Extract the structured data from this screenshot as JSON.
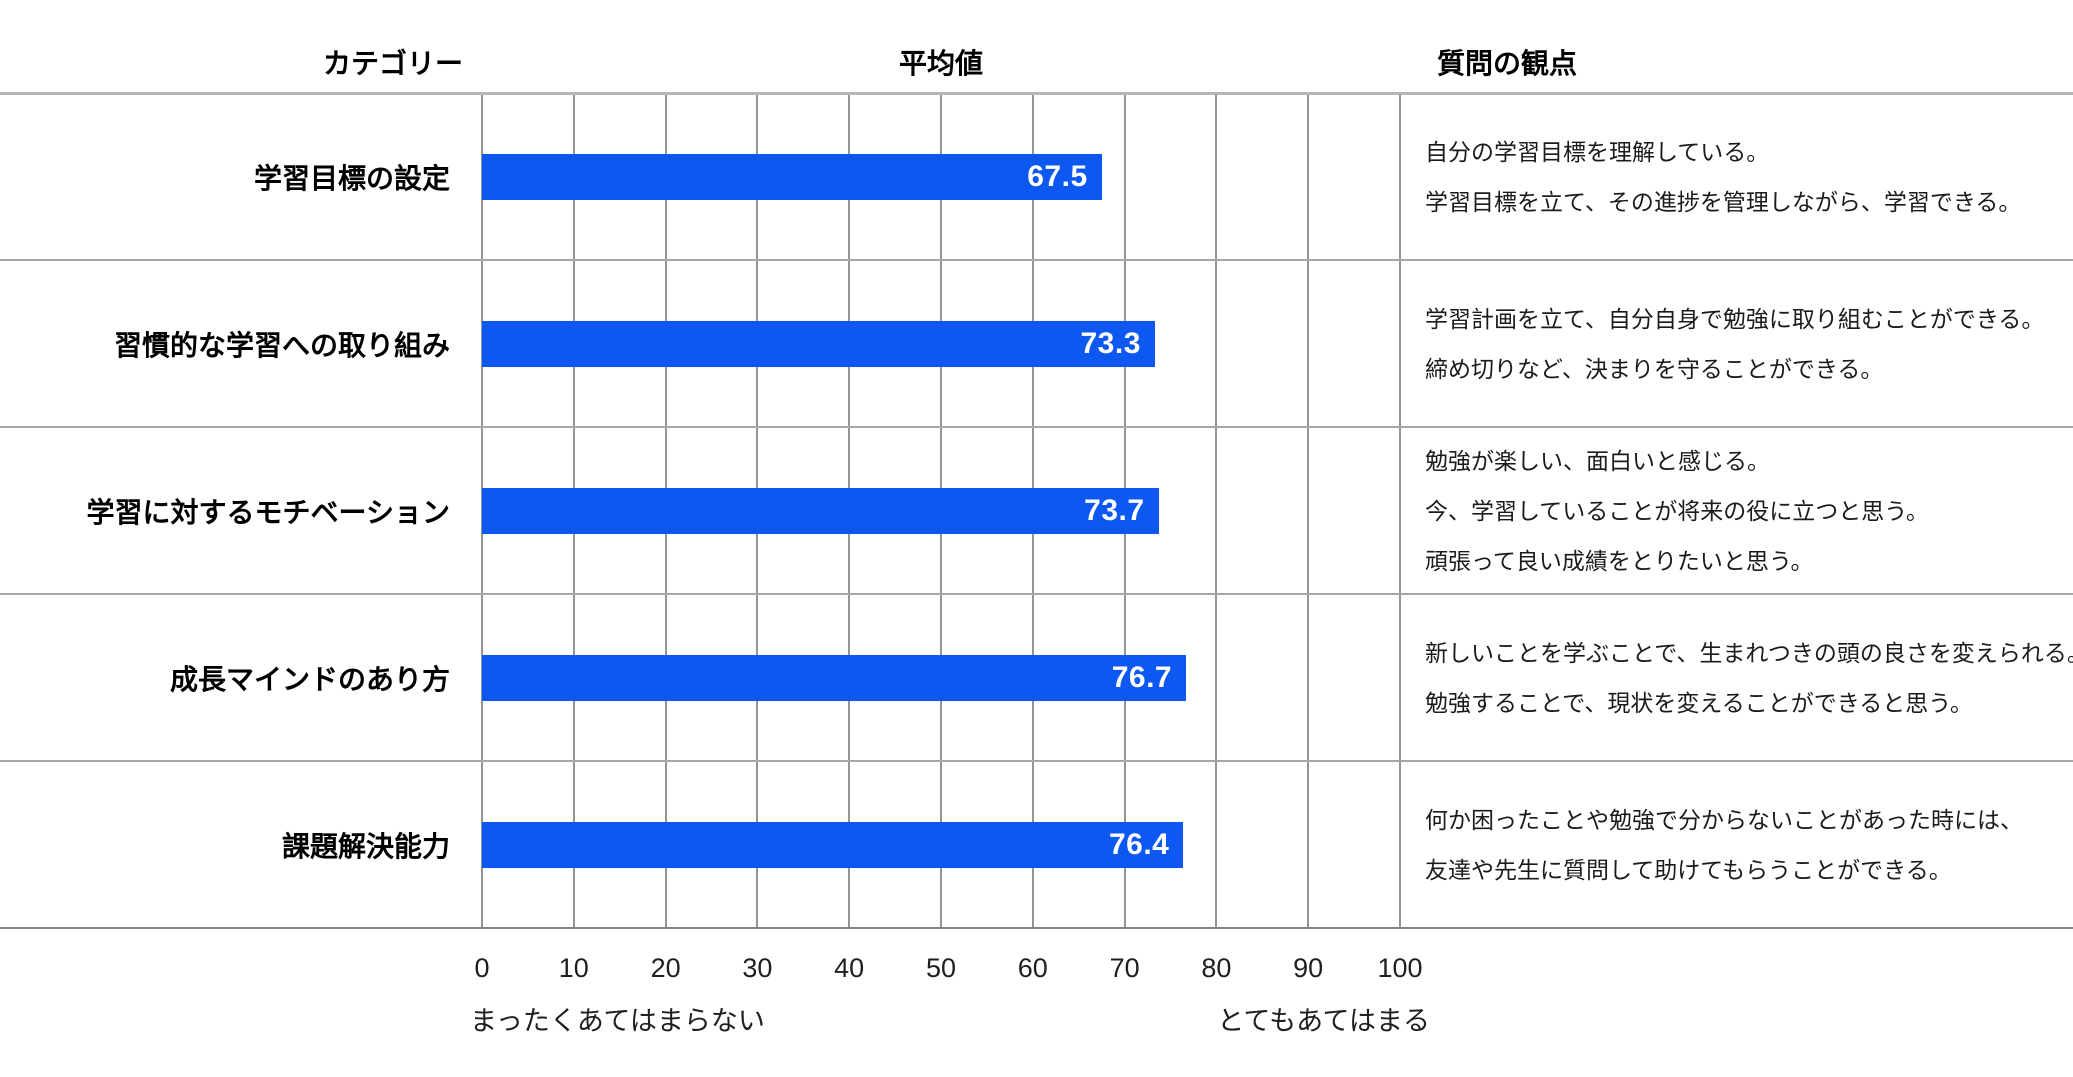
{
  "header": {
    "category": "カテゴリー",
    "average": "平均値",
    "question": "質問の観点"
  },
  "axis": {
    "min_caption": "まったくあてはまらない",
    "max_caption": "とてもあてはまる"
  },
  "colors": {
    "bar": "#0E58F2",
    "value_text": "#ffffff",
    "grid_vertical": "#949494",
    "row_line": "#a6a6a6",
    "header_line": "#b5b5b5",
    "bottom_line": "#838383"
  },
  "chart_data": {
    "type": "bar",
    "orientation": "horizontal",
    "xlim": [
      0,
      100
    ],
    "x_ticks": [
      0,
      10,
      20,
      30,
      40,
      50,
      60,
      70,
      80,
      90,
      100
    ],
    "grid": true,
    "categories": [
      "学習目標の設定",
      "習慣的な学習への取り組み",
      "学習に対するモチベーション",
      "成長マインドのあり方",
      "課題解決能力"
    ],
    "values": [
      67.5,
      73.3,
      73.7,
      76.7,
      76.4
    ],
    "questions": [
      [
        "自分の学習目標を理解している。",
        "学習目標を立て、その進捗を管理しながら、学習できる。"
      ],
      [
        "学習計画を立て、自分自身で勉強に取り組むことができる。",
        "締め切りなど、決まりを守ることができる。"
      ],
      [
        "勉強が楽しい、面白いと感じる。",
        "今、学習していることが将来の役に立つと思う。",
        "頑張って良い成績をとりたいと思う。"
      ],
      [
        "新しいことを学ぶことで、生まれつきの頭の良さを変えられる。",
        "勉強することで、現状を変えることができると思う。"
      ],
      [
        "何か困ったことや勉強で分からないことがあった時には、",
        "友達や先生に質問して助けてもらうことができる。"
      ]
    ]
  }
}
